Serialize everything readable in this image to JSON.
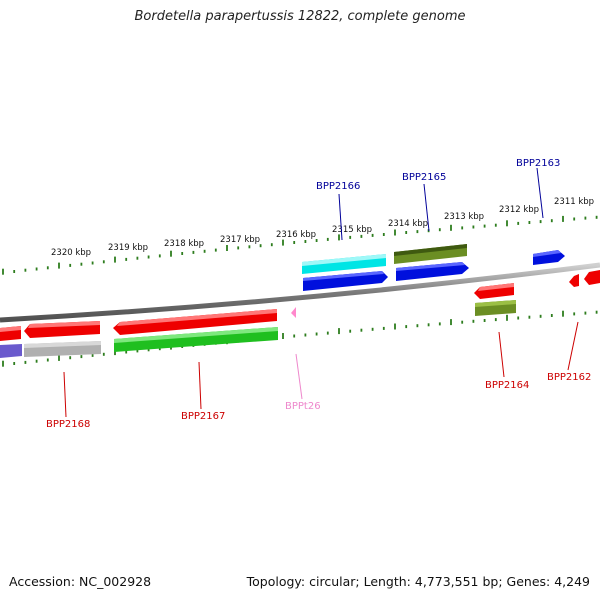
{
  "title": "Bordetella parapertussis 12822, complete genome",
  "footer": {
    "accession": "Accession: NC_002928",
    "summary": "Topology: circular; Length: 4,773,551 bp; Genes: 4,249"
  },
  "colors": {
    "backbone": "#888888",
    "ticks": "#2e7d1e",
    "label_dark_blue": "#000099",
    "label_dark_red": "#cc0000",
    "label_pink": "#ee88cc"
  },
  "scale_labels": [
    "2320 kbp",
    "2319 kbp",
    "2318 kbp",
    "2317 kbp",
    "2316 kbp",
    "2315 kbp",
    "2314 kbp",
    "2313 kbp",
    "2312 kbp",
    "2311 kbp"
  ],
  "gene_labels": [
    {
      "id": "g2166",
      "text": "BPP2166",
      "color": "#000099"
    },
    {
      "id": "g2165",
      "text": "BPP2165",
      "color": "#000099"
    },
    {
      "id": "g2163",
      "text": "BPP2163",
      "color": "#000099"
    },
    {
      "id": "g2168",
      "text": "BPP2168",
      "color": "#cc0000"
    },
    {
      "id": "g2167",
      "text": "BPP2167",
      "color": "#cc0000"
    },
    {
      "id": "gt26",
      "text": "BPPt26",
      "color": "#ee88cc"
    },
    {
      "id": "g2164",
      "text": "BPP2164",
      "color": "#cc0000"
    },
    {
      "id": "g2162",
      "text": "BPP2162",
      "color": "#cc0000"
    }
  ]
}
